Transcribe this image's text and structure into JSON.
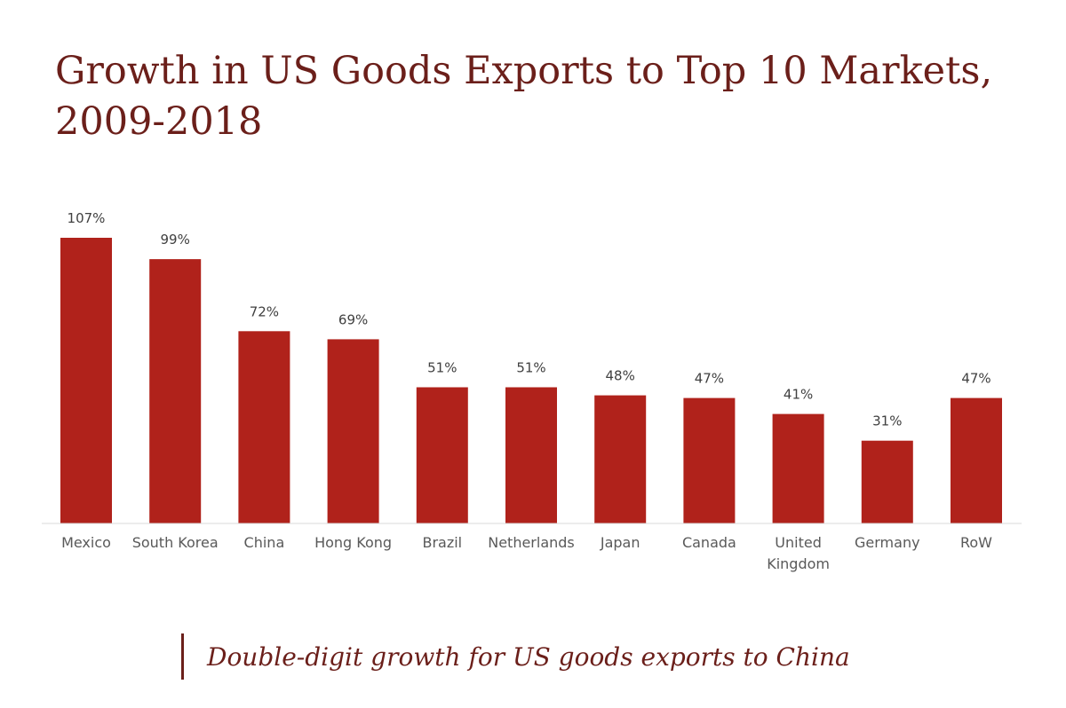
{
  "title": "Growth in US Goods Exports to Top 10 Markets, 2009-2018",
  "caption": "Double-digit growth for US goods exports to China",
  "colors": {
    "bar": "#b0221b",
    "title": "#6b1f1a",
    "axis": "#d9d9d9"
  },
  "chart_data": {
    "type": "bar",
    "title": "Growth in US Goods Exports to Top 10 Markets, 2009-2018",
    "xlabel": "",
    "ylabel": "",
    "ylim": [
      0,
      107
    ],
    "grid": false,
    "categories": [
      [
        "Mexico"
      ],
      [
        "South Korea"
      ],
      [
        "China"
      ],
      [
        "Hong Kong"
      ],
      [
        "Brazil"
      ],
      [
        "Netherlands"
      ],
      [
        "Japan"
      ],
      [
        "Canada"
      ],
      [
        "United",
        "Kingdom"
      ],
      [
        "Germany"
      ],
      [
        "RoW"
      ]
    ],
    "values": [
      107,
      99,
      72,
      69,
      51,
      51,
      48,
      47,
      41,
      31,
      47
    ],
    "value_labels": [
      "107%",
      "99%",
      "72%",
      "69%",
      "51%",
      "51%",
      "48%",
      "47%",
      "41%",
      "31%",
      "47%"
    ]
  }
}
